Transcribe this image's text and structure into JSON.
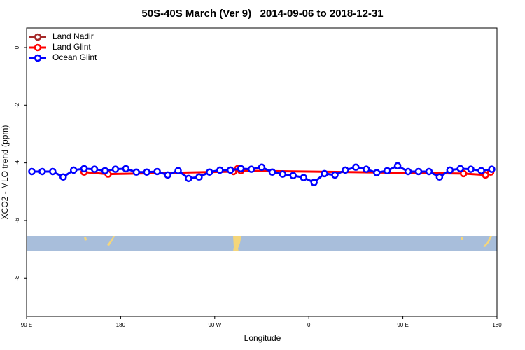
{
  "chart_data": {
    "type": "line",
    "title": "50S-40S March (Ver 9)   2014-09-06 to 2018-12-31",
    "xlabel": "Longitude",
    "ylabel": "XCO2 - MLO trend (ppm)",
    "xlim": [
      90,
      540
    ],
    "ylim": [
      -9.33,
      0.68
    ],
    "xticks": [
      {
        "value": 90,
        "label": "90 E"
      },
      180,
      {
        "value": 270,
        "label": "90 W"
      },
      {
        "value": 360,
        "label": "0"
      },
      {
        "value": 450,
        "label": "90 E"
      },
      {
        "value": 540,
        "label": "180"
      }
    ],
    "yticks": [
      0,
      -2,
      -4,
      -6,
      -8
    ],
    "legend": "top-left",
    "series": [
      {
        "name": "Land Nadir",
        "color": "#a52a2a",
        "x": [],
        "values": []
      },
      {
        "name": "Land Glint",
        "color": "#ff0000",
        "x": [
          145,
          168,
          288,
          292,
          295,
          508,
          529,
          534
        ],
        "values": [
          -4.32,
          -4.39,
          -4.3,
          -4.2,
          -4.27,
          -4.37,
          -4.42,
          -4.32
        ]
      },
      {
        "name": "Ocean Glint",
        "color": "#0000ff",
        "x": [
          95,
          105,
          115,
          125,
          135,
          145,
          155,
          165,
          175,
          185,
          195,
          205,
          215,
          225,
          235,
          245,
          255,
          265,
          275,
          285,
          295,
          305,
          315,
          325,
          335,
          345,
          355,
          365,
          375,
          385,
          395,
          405,
          415,
          425,
          435,
          445,
          455,
          465,
          475,
          485,
          495,
          505,
          515,
          525,
          535
        ],
        "values": [
          -4.3,
          -4.3,
          -4.3,
          -4.49,
          -4.25,
          -4.2,
          -4.22,
          -4.27,
          -4.22,
          -4.2,
          -4.32,
          -4.32,
          -4.3,
          -4.42,
          -4.27,
          -4.54,
          -4.49,
          -4.32,
          -4.25,
          -4.25,
          -4.2,
          -4.22,
          -4.15,
          -4.32,
          -4.39,
          -4.44,
          -4.51,
          -4.68,
          -4.37,
          -4.42,
          -4.25,
          -4.15,
          -4.22,
          -4.34,
          -4.27,
          -4.1,
          -4.3,
          -4.3,
          -4.3,
          -4.49,
          -4.25,
          -4.2,
          -4.22,
          -4.27,
          -4.22
        ]
      }
    ]
  }
}
